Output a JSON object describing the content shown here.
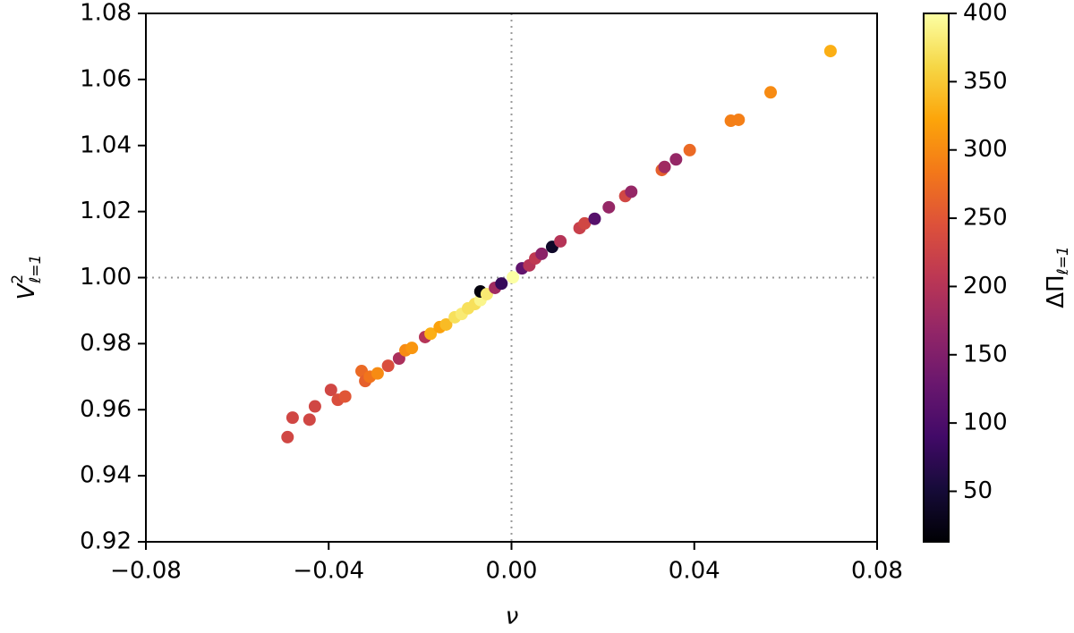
{
  "chart_data": {
    "type": "scatter",
    "xlabel": "ν",
    "ylabel": {
      "base": "V",
      "sup": "2",
      "sub": "ℓ=1"
    },
    "colorbar_label": {
      "base": "ΔΠ",
      "sub": "ℓ=1"
    },
    "colormap": "inferno",
    "clim": [
      13,
      400
    ],
    "cticks": [
      50,
      100,
      150,
      200,
      250,
      300,
      350,
      400
    ],
    "xlim": [
      -0.08,
      0.08
    ],
    "ylim": [
      0.92,
      1.08
    ],
    "xticks": [
      {
        "value": -0.08,
        "label": "−0.08"
      },
      {
        "value": -0.04,
        "label": "−0.04"
      },
      {
        "value": 0,
        "label": "0.00"
      },
      {
        "value": 0.04,
        "label": "0.04"
      },
      {
        "value": 0.08,
        "label": "0.08"
      }
    ],
    "yticks": [
      {
        "value": 0.92,
        "label": "0.92"
      },
      {
        "value": 0.94,
        "label": "0.94"
      },
      {
        "value": 0.96,
        "label": "0.96"
      },
      {
        "value": 0.98,
        "label": "0.98"
      },
      {
        "value": 1.0,
        "label": "1.00"
      },
      {
        "value": 1.02,
        "label": "1.02"
      },
      {
        "value": 1.04,
        "label": "1.04"
      },
      {
        "value": 1.06,
        "label": "1.06"
      },
      {
        "value": 1.08,
        "label": "1.08"
      }
    ],
    "vline": 0,
    "hline": 1,
    "x": [
      -0.049,
      -0.0479,
      -0.0442,
      -0.043,
      -0.0395,
      -0.038,
      -0.0364,
      -0.0328,
      -0.032,
      -0.031,
      -0.0293,
      -0.027,
      -0.0246,
      -0.0232,
      -0.0218,
      -0.0189,
      -0.0177,
      -0.0157,
      -0.0143,
      -0.0124,
      -0.0109,
      -0.0095,
      -0.008,
      -0.0068,
      -0.0068,
      -0.0054,
      -0.0036,
      -0.0022,
      0.0003,
      0.0023,
      0.0039,
      0.0052,
      0.0066,
      0.0089,
      0.0107,
      0.0149,
      0.016,
      0.0182,
      0.0213,
      0.0249,
      0.0262,
      0.0329,
      0.0335,
      0.036,
      0.039,
      0.048,
      0.0497,
      0.0567,
      0.0698
    ],
    "values": [
      0.9517,
      0.9576,
      0.957,
      0.961,
      0.966,
      0.963,
      0.964,
      0.9717,
      0.9687,
      0.97,
      0.971,
      0.9733,
      0.9755,
      0.978,
      0.9787,
      0.982,
      0.983,
      0.985,
      0.9858,
      0.988,
      0.989,
      0.9907,
      0.992,
      0.9932,
      0.9958,
      0.995,
      0.9969,
      0.9982,
      1.0001,
      1.0028,
      1.0037,
      1.0058,
      1.0072,
      1.0093,
      1.011,
      1.015,
      1.0164,
      1.0178,
      1.0213,
      1.0247,
      1.026,
      1.0326,
      1.0335,
      1.0358,
      1.0386,
      1.0475,
      1.0478,
      1.0561,
      1.0686
    ],
    "color_values": [
      230,
      230,
      230,
      230,
      230,
      240,
      250,
      270,
      260,
      280,
      300,
      240,
      190,
      300,
      310,
      200,
      330,
      320,
      340,
      370,
      380,
      370,
      370,
      390,
      20,
      380,
      180,
      80,
      400,
      120,
      200,
      210,
      160,
      40,
      200,
      220,
      230,
      110,
      170,
      230,
      170,
      260,
      180,
      170,
      270,
      290,
      290,
      300,
      330
    ]
  }
}
